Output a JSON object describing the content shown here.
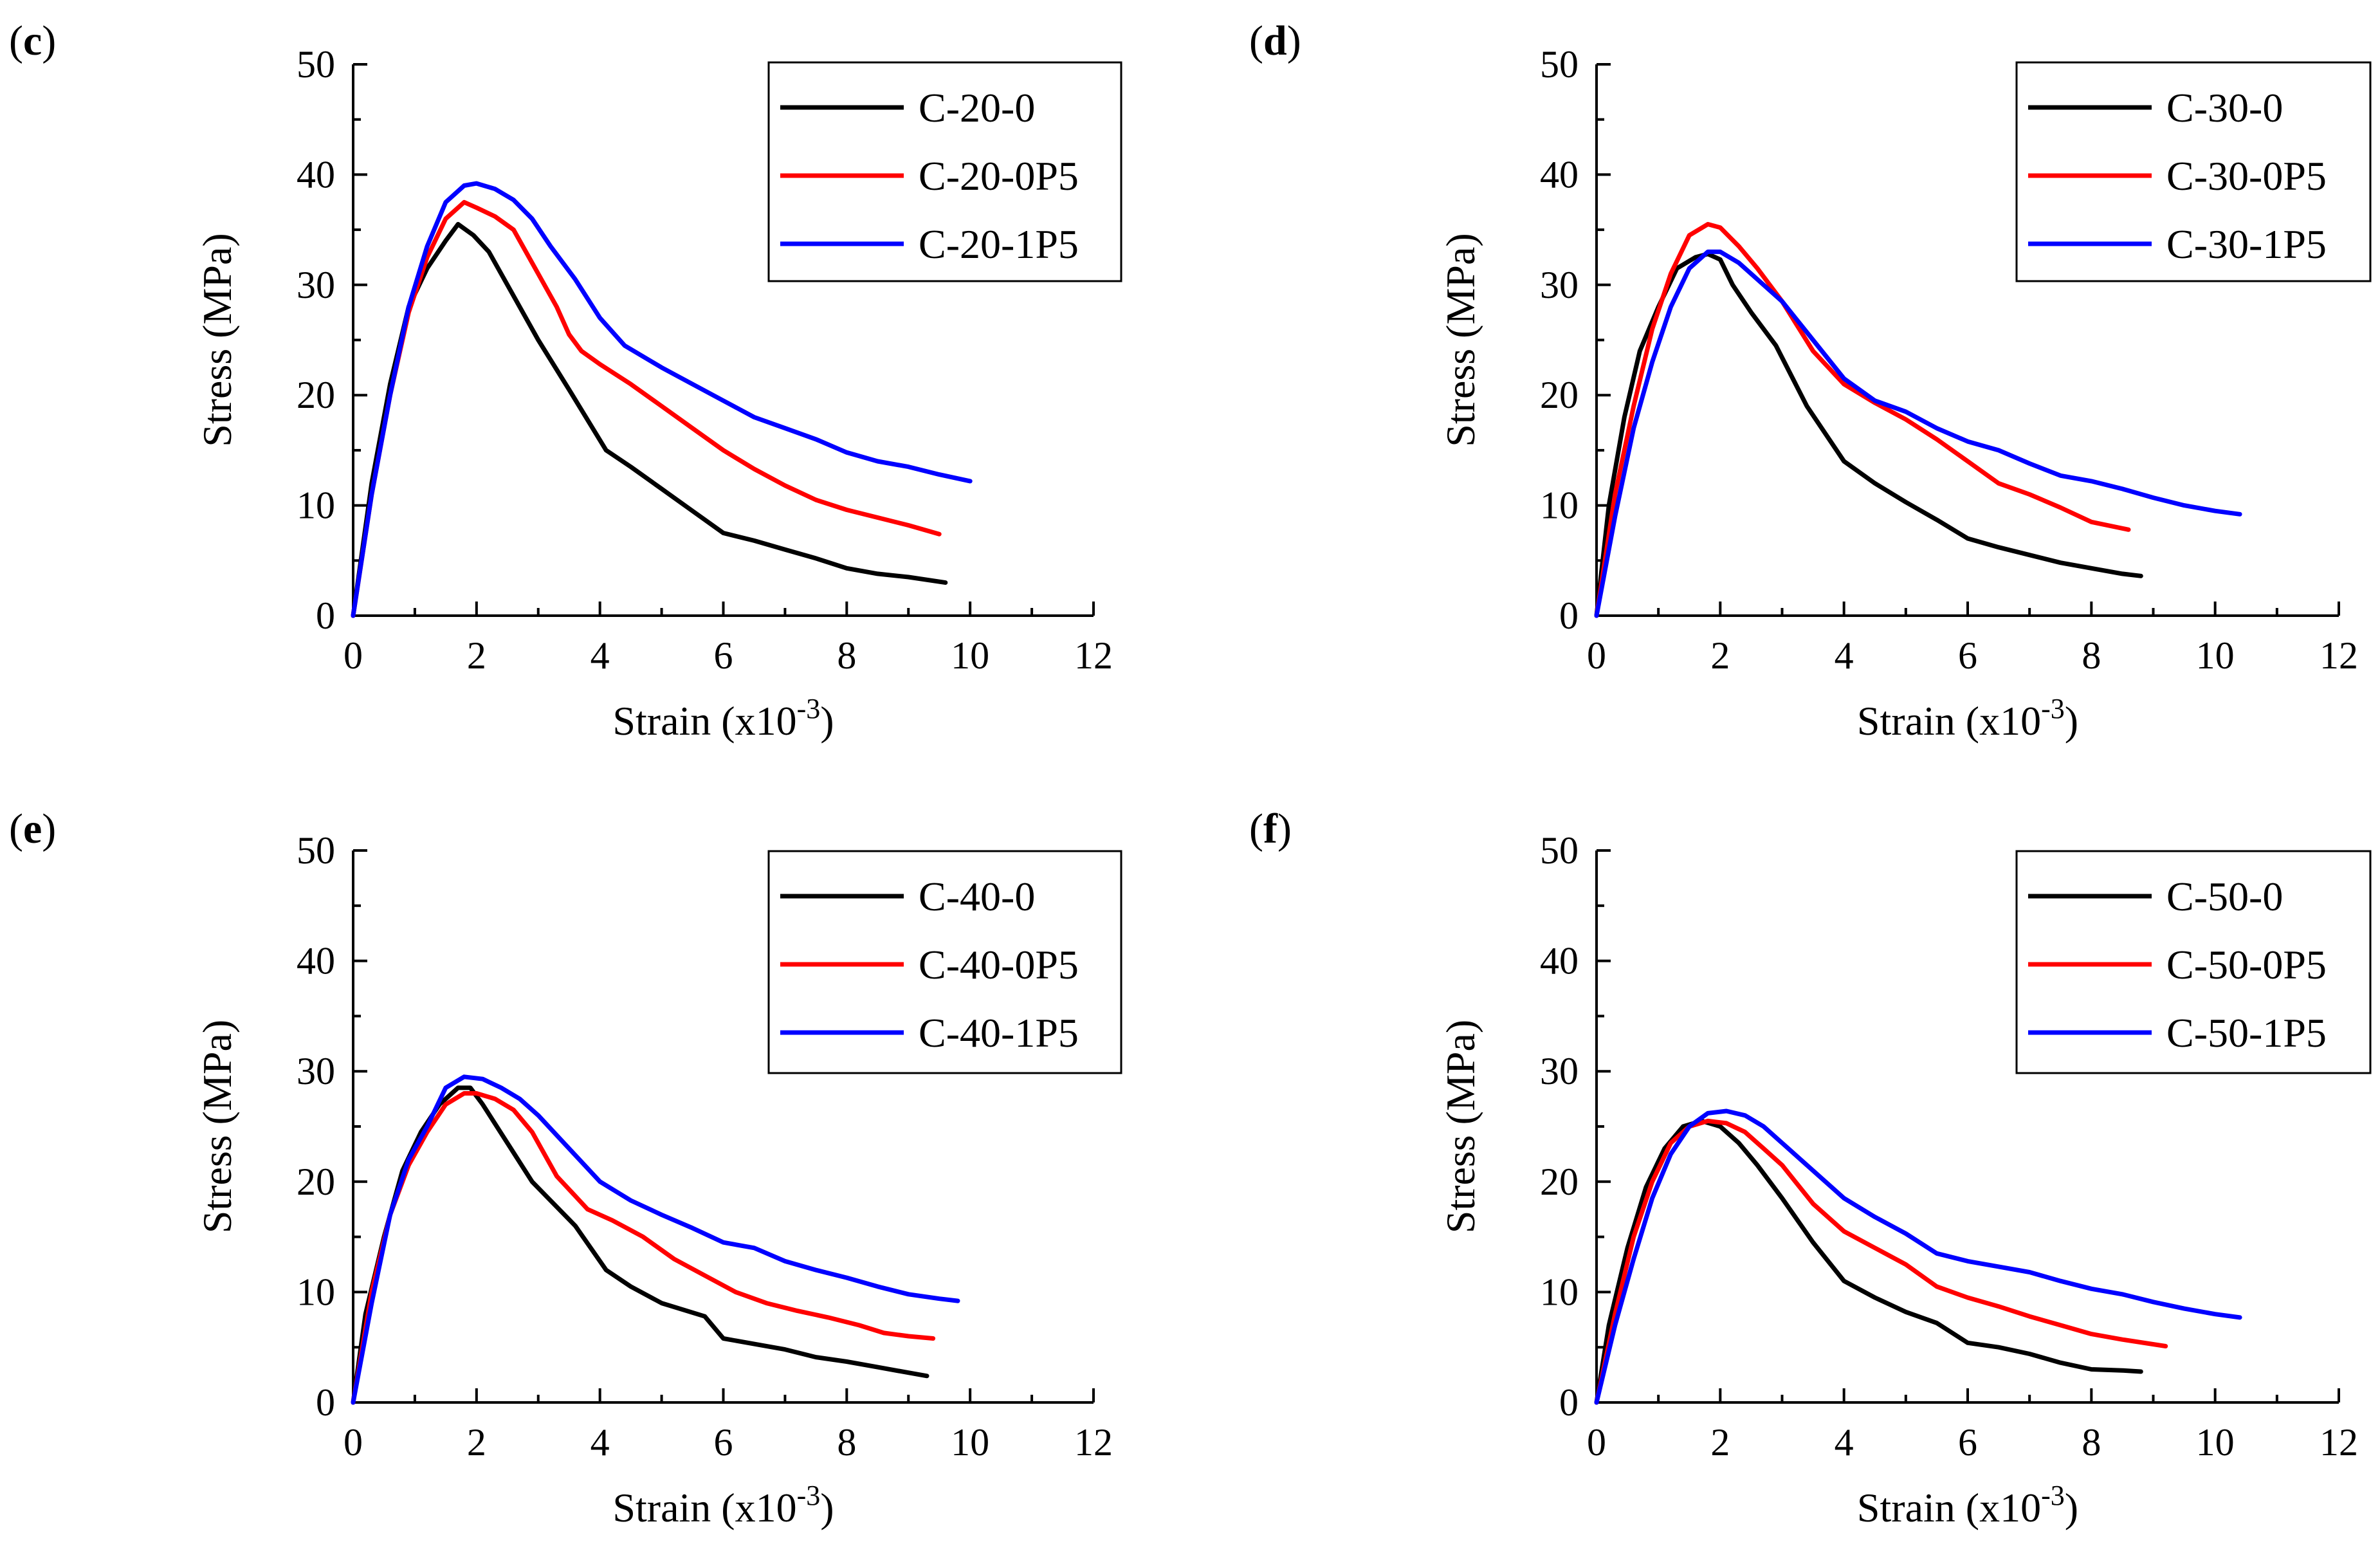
{
  "chart_data": [
    {
      "type": "line",
      "panel_label": "(c)",
      "xlabel": "Strain (x10",
      "xlabel_exp": "-3",
      "xlabel_close": ")",
      "ylabel": "Stress (MPa)",
      "xlim": [
        0,
        12
      ],
      "ylim": [
        0,
        50
      ],
      "xticks": [
        "0",
        "2",
        "4",
        "6",
        "8",
        "10",
        "12"
      ],
      "yticks": [
        "0",
        "10",
        "20",
        "30",
        "40",
        "50"
      ],
      "legend_position": "top-right",
      "series": [
        {
          "name": "C-20-0",
          "color": "#000000",
          "x": [
            0,
            0.3,
            0.6,
            0.9,
            1.2,
            1.5,
            1.7,
            1.95,
            2.2,
            2.6,
            3.0,
            3.5,
            4.1,
            4.5,
            5.0,
            5.5,
            6.0,
            6.5,
            7.0,
            7.5,
            8.0,
            8.5,
            9.0,
            9.6
          ],
          "y": [
            0,
            12,
            21,
            28,
            31.5,
            34,
            35.5,
            34.5,
            33,
            29,
            25,
            20.5,
            15,
            13.5,
            11.5,
            9.5,
            7.5,
            6.8,
            6,
            5.2,
            4.3,
            3.8,
            3.5,
            3.0
          ]
        },
        {
          "name": "C-20-0P5",
          "color": "#ff0000",
          "x": [
            0,
            0.3,
            0.6,
            0.9,
            1.2,
            1.5,
            1.8,
            2.0,
            2.3,
            2.6,
            3.0,
            3.3,
            3.5,
            3.7,
            4.0,
            4.5,
            5.0,
            5.5,
            6.0,
            6.5,
            7.0,
            7.5,
            8.0,
            8.5,
            9.0,
            9.5
          ],
          "y": [
            0,
            11,
            20,
            27.5,
            32.5,
            36,
            37.5,
            37,
            36.2,
            35,
            31,
            28,
            25.5,
            24,
            22.8,
            21,
            19,
            17,
            15,
            13.3,
            11.8,
            10.5,
            9.6,
            8.9,
            8.2,
            7.4
          ]
        },
        {
          "name": "C-20-1P5",
          "color": "#0000ff",
          "x": [
            0,
            0.3,
            0.6,
            0.9,
            1.2,
            1.5,
            1.8,
            2.0,
            2.3,
            2.6,
            2.9,
            3.2,
            3.6,
            4.0,
            4.4,
            5.0,
            5.5,
            6.0,
            6.5,
            7.0,
            7.5,
            8.0,
            8.5,
            9.0,
            9.5,
            10.0
          ],
          "y": [
            0,
            11,
            20,
            28,
            33.5,
            37.5,
            39,
            39.2,
            38.7,
            37.7,
            36,
            33.5,
            30.5,
            27,
            24.5,
            22.5,
            21,
            19.5,
            18,
            17,
            16,
            14.8,
            14,
            13.5,
            12.8,
            12.2
          ]
        }
      ]
    },
    {
      "type": "line",
      "panel_label": "(d)",
      "xlabel": "Strain (x10",
      "xlabel_exp": "-3",
      "xlabel_close": ")",
      "ylabel": "Stress (MPa)",
      "xlim": [
        0,
        12
      ],
      "ylim": [
        0,
        50
      ],
      "xticks": [
        "0",
        "2",
        "4",
        "6",
        "8",
        "10",
        "12"
      ],
      "yticks": [
        "0",
        "10",
        "20",
        "30",
        "40",
        "50"
      ],
      "legend_position": "top-right",
      "series": [
        {
          "name": "C-30-0",
          "color": "#000000",
          "x": [
            0,
            0.2,
            0.45,
            0.7,
            1.0,
            1.3,
            1.6,
            1.8,
            2.0,
            2.2,
            2.5,
            2.9,
            3.4,
            4.0,
            4.5,
            5.0,
            5.5,
            6.0,
            6.5,
            7.0,
            7.5,
            8.0,
            8.5,
            8.8
          ],
          "y": [
            0,
            10,
            18,
            24,
            28,
            31.5,
            32.5,
            32.8,
            32.3,
            30,
            27.5,
            24.5,
            19,
            14,
            12,
            10.3,
            8.7,
            7,
            6.2,
            5.5,
            4.8,
            4.3,
            3.8,
            3.6
          ]
        },
        {
          "name": "C-30-0P5",
          "color": "#ff0000",
          "x": [
            0,
            0.3,
            0.6,
            0.9,
            1.2,
            1.5,
            1.8,
            2.0,
            2.3,
            2.6,
            3.0,
            3.5,
            4.0,
            4.5,
            5.0,
            5.5,
            6.0,
            6.5,
            7.0,
            7.5,
            8.0,
            8.6
          ],
          "y": [
            0,
            11,
            19,
            26,
            31,
            34.5,
            35.5,
            35.2,
            33.5,
            31.5,
            28.5,
            24,
            21,
            19.3,
            17.8,
            16,
            14,
            12,
            11,
            9.8,
            8.5,
            7.8
          ]
        },
        {
          "name": "C-30-1P5",
          "color": "#0000ff",
          "x": [
            0,
            0.3,
            0.6,
            0.9,
            1.2,
            1.5,
            1.8,
            2.0,
            2.3,
            2.6,
            3.0,
            3.5,
            4.0,
            4.5,
            5.0,
            5.5,
            6.0,
            6.5,
            7.0,
            7.5,
            8.0,
            8.5,
            9.0,
            9.5,
            10.0,
            10.4
          ],
          "y": [
            0,
            9,
            17,
            23,
            28,
            31.5,
            33,
            33,
            32,
            30.5,
            28.5,
            25,
            21.5,
            19.5,
            18.5,
            17,
            15.8,
            15,
            13.8,
            12.7,
            12.2,
            11.5,
            10.7,
            10,
            9.5,
            9.2
          ]
        }
      ]
    },
    {
      "type": "line",
      "panel_label": "(e)",
      "xlabel": "Strain (x10",
      "xlabel_exp": "-3",
      "xlabel_close": ")",
      "ylabel": "Stress (MPa)",
      "xlim": [
        0,
        12
      ],
      "ylim": [
        0,
        50
      ],
      "xticks": [
        "0",
        "2",
        "4",
        "6",
        "8",
        "10",
        "12"
      ],
      "yticks": [
        "0",
        "10",
        "20",
        "30",
        "40",
        "50"
      ],
      "legend_position": "top-right",
      "series": [
        {
          "name": "C-40-0",
          "color": "#000000",
          "x": [
            0,
            0.2,
            0.5,
            0.8,
            1.1,
            1.4,
            1.7,
            1.9,
            2.1,
            2.5,
            2.9,
            3.6,
            4.1,
            4.5,
            5.0,
            5.7,
            6.0,
            6.5,
            7.0,
            7.5,
            8.0,
            8.5,
            9.0,
            9.3
          ],
          "y": [
            0,
            8,
            15,
            21,
            24.5,
            27,
            28.5,
            28.5,
            27,
            23.5,
            20,
            16,
            12,
            10.5,
            9,
            7.8,
            5.8,
            5.3,
            4.8,
            4.1,
            3.7,
            3.2,
            2.7,
            2.4
          ]
        },
        {
          "name": "C-40-0P5",
          "color": "#ff0000",
          "x": [
            0,
            0.3,
            0.6,
            0.9,
            1.2,
            1.5,
            1.8,
            2.0,
            2.3,
            2.6,
            2.9,
            3.3,
            3.8,
            4.2,
            4.7,
            5.2,
            5.7,
            6.2,
            6.7,
            7.2,
            7.7,
            8.2,
            8.6,
            9.0,
            9.4
          ],
          "y": [
            0,
            10,
            17,
            21.5,
            24.5,
            27,
            28,
            28,
            27.5,
            26.5,
            24.5,
            20.5,
            17.5,
            16.5,
            15,
            13,
            11.5,
            10,
            9,
            8.3,
            7.7,
            7,
            6.3,
            6,
            5.8
          ]
        },
        {
          "name": "C-40-1P5",
          "color": "#0000ff",
          "x": [
            0,
            0.3,
            0.6,
            0.9,
            1.2,
            1.5,
            1.8,
            2.1,
            2.4,
            2.7,
            3.0,
            3.5,
            4.0,
            4.5,
            5.0,
            5.5,
            6.0,
            6.5,
            7.0,
            7.5,
            8.0,
            8.5,
            9.0,
            9.5,
            9.8
          ],
          "y": [
            0,
            9,
            17,
            22,
            25,
            28.5,
            29.5,
            29.3,
            28.5,
            27.5,
            26,
            23,
            20,
            18.3,
            17,
            15.8,
            14.5,
            14,
            12.8,
            12,
            11.3,
            10.5,
            9.8,
            9.4,
            9.2
          ]
        }
      ]
    },
    {
      "type": "line",
      "panel_label": "(f)",
      "xlabel": "Strain (x10",
      "xlabel_exp": "-3",
      "xlabel_close": ")",
      "ylabel": "Stress (MPa)",
      "xlim": [
        0,
        12
      ],
      "ylim": [
        0,
        50
      ],
      "xticks": [
        "0",
        "2",
        "4",
        "6",
        "8",
        "10",
        "12"
      ],
      "yticks": [
        "0",
        "10",
        "20",
        "30",
        "40",
        "50"
      ],
      "legend_position": "top-right",
      "series": [
        {
          "name": "C-50-0",
          "color": "#000000",
          "x": [
            0,
            0.2,
            0.5,
            0.8,
            1.1,
            1.4,
            1.7,
            2.0,
            2.3,
            2.6,
            3.0,
            3.5,
            4.0,
            4.5,
            5.0,
            5.5,
            6.0,
            6.5,
            7.0,
            7.5,
            8.0,
            8.5,
            8.8
          ],
          "y": [
            0,
            7,
            14,
            19.5,
            23,
            25,
            25.5,
            25,
            23.5,
            21.5,
            18.5,
            14.5,
            11,
            9.5,
            8.2,
            7.2,
            5.4,
            5,
            4.4,
            3.6,
            3,
            2.9,
            2.8
          ]
        },
        {
          "name": "C-50-0P5",
          "color": "#ff0000",
          "x": [
            0,
            0.3,
            0.6,
            0.9,
            1.2,
            1.5,
            1.8,
            2.1,
            2.4,
            2.7,
            3.0,
            3.5,
            4.0,
            4.5,
            5.0,
            5.5,
            6.0,
            6.5,
            7.0,
            7.5,
            8.0,
            8.5,
            9.2
          ],
          "y": [
            0,
            8,
            15,
            20,
            23.5,
            25,
            25.5,
            25.3,
            24.5,
            23,
            21.5,
            18,
            15.5,
            14,
            12.5,
            10.5,
            9.5,
            8.7,
            7.8,
            7,
            6.2,
            5.7,
            5.1
          ]
        },
        {
          "name": "C-50-1P5",
          "color": "#0000ff",
          "x": [
            0,
            0.3,
            0.6,
            0.9,
            1.2,
            1.5,
            1.8,
            2.1,
            2.4,
            2.7,
            3.0,
            3.5,
            4.0,
            4.5,
            5.0,
            5.5,
            6.0,
            6.5,
            7.0,
            7.5,
            8.0,
            8.5,
            9.0,
            9.5,
            10.0,
            10.4
          ],
          "y": [
            0,
            7,
            13,
            18.5,
            22.5,
            25,
            26.2,
            26.4,
            26,
            25,
            23.5,
            21,
            18.5,
            16.8,
            15.3,
            13.5,
            12.8,
            12.3,
            11.8,
            11,
            10.3,
            9.8,
            9.1,
            8.5,
            8,
            7.7
          ]
        }
      ]
    }
  ]
}
